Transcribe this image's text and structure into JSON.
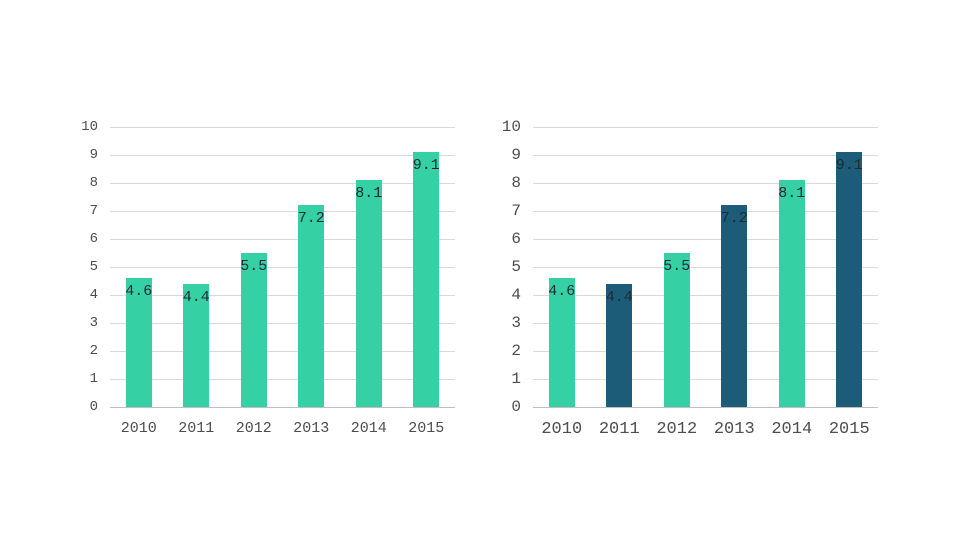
{
  "chart_data": [
    {
      "type": "bar",
      "title": "",
      "categories": [
        "2010",
        "2011",
        "2012",
        "2013",
        "2014",
        "2015"
      ],
      "values": [
        4.6,
        4.4,
        5.5,
        7.2,
        8.1,
        9.1
      ],
      "value_labels": [
        "4.6",
        "4.4",
        "5.5",
        "7.2",
        "8.1",
        "9.1"
      ],
      "bar_colors": [
        "#35d1a5",
        "#35d1a5",
        "#35d1a5",
        "#35d1a5",
        "#35d1a5",
        "#35d1a5"
      ],
      "xlabel": "",
      "ylabel": "",
      "ylim": [
        0,
        10
      ],
      "yticks": [
        0,
        1,
        2,
        3,
        4,
        5,
        6,
        7,
        8,
        9,
        10
      ],
      "grid": true,
      "legend": "none"
    },
    {
      "type": "bar",
      "title": "",
      "categories": [
        "2010",
        "2011",
        "2012",
        "2013",
        "2014",
        "2015"
      ],
      "values": [
        4.6,
        4.4,
        5.5,
        7.2,
        8.1,
        9.1
      ],
      "value_labels": [
        "4.6",
        "4.4",
        "5.5",
        "7.2",
        "8.1",
        "9.1"
      ],
      "bar_colors": [
        "#35d1a5",
        "#1d5c79",
        "#35d1a5",
        "#1d5c79",
        "#35d1a5",
        "#1d5c79"
      ],
      "xlabel": "",
      "ylabel": "",
      "ylim": [
        0,
        10
      ],
      "yticks": [
        0,
        1,
        2,
        3,
        4,
        5,
        6,
        7,
        8,
        9,
        10
      ],
      "grid": true,
      "legend": "none"
    }
  ],
  "colors": {
    "bar_green": "#35d1a5",
    "bar_dark_teal": "#1d5c79",
    "gridline": "#d9d9d9",
    "axis_line": "#bfbfbf",
    "tick_text": "#4d4d4d",
    "value_text": "#232a31",
    "background": "#ffffff"
  }
}
